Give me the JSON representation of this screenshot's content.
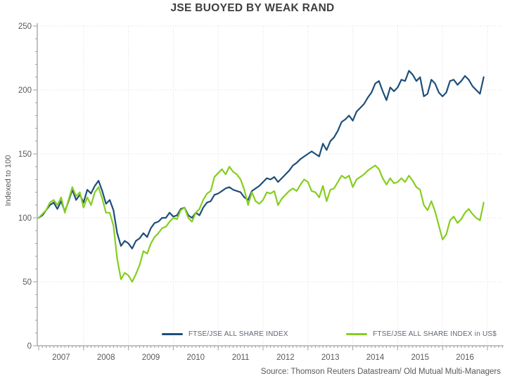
{
  "title": "JSE BUOYED BY WEAK RAND",
  "y_axis_label": "Indexed to 100",
  "source": "Source: Thomson Reuters Datastream/ Old Mutual Multi-Managers",
  "legend": [
    {
      "label": "FTSE/JSE ALL SHARE INDEX",
      "color": "#1F4E79"
    },
    {
      "label": "FTSE/JSE ALL SHARE INDEX in US$",
      "color": "#85CE1F"
    }
  ],
  "colors": {
    "navy_series": "#1F4E79",
    "green_series": "#85CE1F",
    "grid": "#D9D9D9",
    "axis": "#A0A0A0",
    "tick_text": "#595959",
    "title_text": "#3F3F3F"
  },
  "chart_data": {
    "type": "line",
    "title": "JSE BUOYED BY WEAK RAND",
    "ylabel": "Indexed to 100",
    "ylim": [
      0,
      250
    ],
    "y_ticks": [
      0,
      50,
      100,
      150,
      200,
      250
    ],
    "y_minor_step": 10,
    "x_tick_years": [
      2007,
      2008,
      2009,
      2010,
      2011,
      2012,
      2013,
      2014,
      2015,
      2016
    ],
    "x_start": "2007-01",
    "x_end": "2016-12",
    "frequency": "monthly",
    "grid": "dotted",
    "legend_position": "bottom-center-right",
    "source": "Source: Thomson Reuters Datastream/ Old Mutual Multi-Managers",
    "series": [
      {
        "name": "FTSE/JSE ALL SHARE INDEX",
        "color": "#1F4E79",
        "values": [
          100,
          102,
          106,
          110,
          112,
          107,
          113,
          105,
          113,
          122,
          114,
          118,
          112,
          122,
          119,
          125,
          129,
          121,
          111,
          114,
          106,
          88,
          78,
          82,
          80,
          76,
          82,
          84,
          88,
          85,
          92,
          96,
          97,
          100,
          100,
          104,
          101,
          102,
          107,
          108,
          102,
          100,
          104,
          102,
          108,
          112,
          113,
          118,
          119,
          121,
          123,
          124,
          122,
          121,
          120,
          116,
          114,
          121,
          123,
          125,
          128,
          131,
          130,
          132,
          128,
          131,
          134,
          137,
          141,
          143,
          146,
          148,
          150,
          152,
          150,
          148,
          158,
          153,
          160,
          163,
          168,
          175,
          177,
          180,
          176,
          183,
          186,
          189,
          194,
          198,
          205,
          207,
          199,
          192,
          202,
          199,
          202,
          208,
          207,
          215,
          212,
          207,
          210,
          195,
          197,
          208,
          205,
          198,
          195,
          198,
          207,
          208,
          204,
          207,
          211,
          208,
          203,
          200,
          197,
          210
        ]
      },
      {
        "name": "FTSE/JSE ALL SHARE INDEX in US$",
        "color": "#85CE1F",
        "values": [
          100,
          103,
          106,
          112,
          114,
          110,
          116,
          104,
          114,
          124,
          117,
          120,
          108,
          116,
          110,
          120,
          124,
          115,
          104,
          104,
          94,
          68,
          52,
          57,
          55,
          50,
          56,
          63,
          74,
          72,
          80,
          85,
          88,
          92,
          93,
          97,
          100,
          99,
          106,
          108,
          100,
          97,
          104,
          107,
          114,
          119,
          121,
          132,
          135,
          138,
          134,
          140,
          136,
          134,
          130,
          122,
          110,
          120,
          113,
          111,
          114,
          120,
          119,
          121,
          110,
          115,
          118,
          121,
          123,
          121,
          126,
          130,
          128,
          121,
          120,
          116,
          125,
          113,
          122,
          123,
          128,
          133,
          131,
          133,
          124,
          130,
          132,
          134,
          137,
          139,
          141,
          138,
          131,
          126,
          131,
          127,
          128,
          131,
          128,
          133,
          129,
          124,
          122,
          110,
          106,
          113,
          105,
          94,
          83,
          87,
          98,
          101,
          96,
          99,
          104,
          107,
          103,
          100,
          98,
          112
        ]
      }
    ]
  }
}
